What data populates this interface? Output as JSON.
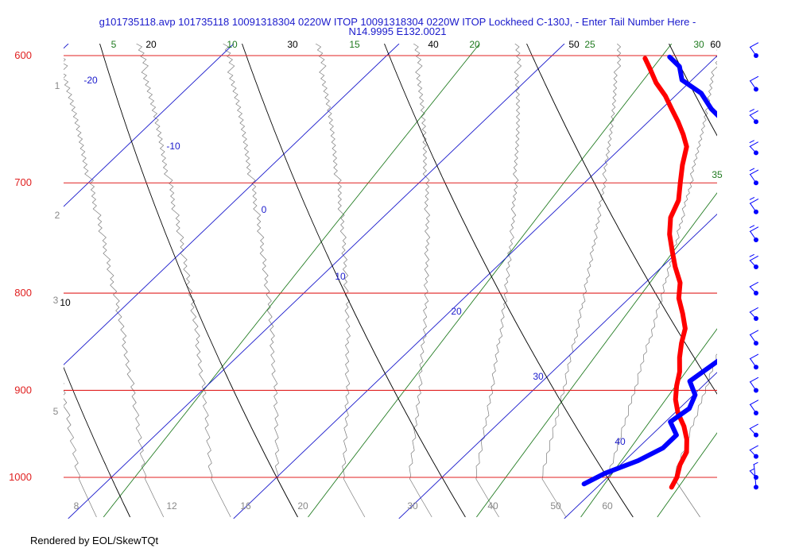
{
  "title_line1": "g101735118.avp 101735118 10091318304 0220W ITOP 10091318304 0220W ITOP Lockheed C-130J, - Enter Tail Number Here -",
  "title_line2": "N14.9995 E132.0021",
  "footer": "Rendered by EOL/SkewTQt",
  "colors": {
    "isobar": "#e02020",
    "isotherm": "#1a1acc",
    "dry_adiabat": "#000000",
    "moist_adiabat": "#7a7a7a",
    "mixing_ratio": "#1f7a1f",
    "temperature": "#ff0000",
    "dewpoint": "#0000ff",
    "wind": "#0000ff"
  },
  "chart_data": {
    "type": "line",
    "chart_kind": "skew-T log-P diagram",
    "pressure_levels": [
      {
        "p": 600,
        "label": "600"
      },
      {
        "p": 700,
        "label": "700"
      },
      {
        "p": 800,
        "label": "800"
      },
      {
        "p": 900,
        "label": "900"
      },
      {
        "p": 1000,
        "label": "1000"
      }
    ],
    "isotherm_labels": [
      "-20",
      "-10",
      "0",
      "10",
      "20",
      "30",
      "40"
    ],
    "dry_adiabat_labels": [
      "10",
      "20",
      "30",
      "40",
      "50",
      "60"
    ],
    "mixing_ratio_labels": [
      "5",
      "10",
      "15",
      "20",
      "25",
      "30",
      "35"
    ],
    "theta_e_labels": [
      "8",
      "12",
      "16",
      "20",
      "30",
      "40",
      "50",
      "60"
    ],
    "height_labels": [
      "1",
      "2",
      "3",
      "4",
      "5"
    ],
    "series": [
      {
        "name": "temperature",
        "points": [
          {
            "p": 1012,
            "t": 24.5
          },
          {
            "p": 1000,
            "t": 24.2
          },
          {
            "p": 985,
            "t": 23.6
          },
          {
            "p": 970,
            "t": 23.2
          },
          {
            "p": 955,
            "t": 22.4
          },
          {
            "p": 940,
            "t": 21.4
          },
          {
            "p": 925,
            "t": 20.2
          },
          {
            "p": 910,
            "t": 19.2
          },
          {
            "p": 895,
            "t": 18.4
          },
          {
            "p": 880,
            "t": 17.7
          },
          {
            "p": 865,
            "t": 16.8
          },
          {
            "p": 850,
            "t": 16.0
          },
          {
            "p": 835,
            "t": 15.3
          },
          {
            "p": 820,
            "t": 14.2
          },
          {
            "p": 805,
            "t": 13.0
          },
          {
            "p": 790,
            "t": 12.1
          },
          {
            "p": 775,
            "t": 10.8
          },
          {
            "p": 760,
            "t": 9.6
          },
          {
            "p": 745,
            "t": 8.4
          },
          {
            "p": 730,
            "t": 7.4
          },
          {
            "p": 715,
            "t": 6.8
          },
          {
            "p": 700,
            "t": 5.8
          },
          {
            "p": 685,
            "t": 4.8
          },
          {
            "p": 670,
            "t": 3.9
          },
          {
            "p": 660,
            "t": 2.9
          },
          {
            "p": 650,
            "t": 1.8
          },
          {
            "p": 640,
            "t": 0.6
          },
          {
            "p": 630,
            "t": -0.6
          },
          {
            "p": 620,
            "t": -2.0
          },
          {
            "p": 610,
            "t": -3.2
          },
          {
            "p": 602,
            "t": -4.2
          }
        ]
      },
      {
        "name": "dewpoint",
        "points": [
          {
            "p": 1008,
            "t": 19.0
          },
          {
            "p": 995,
            "t": 19.6
          },
          {
            "p": 980,
            "t": 20.8
          },
          {
            "p": 965,
            "t": 21.5
          },
          {
            "p": 950,
            "t": 21.5
          },
          {
            "p": 935,
            "t": 20.3
          },
          {
            "p": 920,
            "t": 20.6
          },
          {
            "p": 905,
            "t": 20.1
          },
          {
            "p": 890,
            "t": 18.9
          },
          {
            "p": 875,
            "t": 19.2
          },
          {
            "p": 860,
            "t": 19.5
          },
          {
            "p": 845,
            "t": 19.6
          },
          {
            "p": 830,
            "t": 18.9
          },
          {
            "p": 815,
            "t": 18.3
          },
          {
            "p": 800,
            "t": 17.5
          },
          {
            "p": 785,
            "t": 16.1
          },
          {
            "p": 770,
            "t": 15.3
          },
          {
            "p": 755,
            "t": 14.7
          },
          {
            "p": 740,
            "t": 14.6
          },
          {
            "p": 725,
            "t": 12.5
          },
          {
            "p": 712,
            "t": 10.0
          },
          {
            "p": 700,
            "t": 9.0
          },
          {
            "p": 690,
            "t": 8.0
          },
          {
            "p": 678,
            "t": 7.4
          },
          {
            "p": 665,
            "t": 6.2
          },
          {
            "p": 652,
            "t": 4.9
          },
          {
            "p": 640,
            "t": 3.0
          },
          {
            "p": 628,
            "t": 1.4
          },
          {
            "p": 618,
            "t": -0.6
          },
          {
            "p": 608,
            "t": -1.6
          },
          {
            "p": 601,
            "t": -2.8
          }
        ]
      }
    ],
    "wind_barbs": [
      {
        "p": 600,
        "speed_kt": 10,
        "dir_deg": 250
      },
      {
        "p": 625,
        "speed_kt": 10,
        "dir_deg": 250
      },
      {
        "p": 650,
        "speed_kt": 15,
        "dir_deg": 255
      },
      {
        "p": 675,
        "speed_kt": 15,
        "dir_deg": 255
      },
      {
        "p": 700,
        "speed_kt": 15,
        "dir_deg": 250
      },
      {
        "p": 725,
        "speed_kt": 15,
        "dir_deg": 250
      },
      {
        "p": 750,
        "speed_kt": 15,
        "dir_deg": 250
      },
      {
        "p": 775,
        "speed_kt": 15,
        "dir_deg": 255
      },
      {
        "p": 800,
        "speed_kt": 10,
        "dir_deg": 255
      },
      {
        "p": 825,
        "speed_kt": 10,
        "dir_deg": 255
      },
      {
        "p": 850,
        "speed_kt": 10,
        "dir_deg": 250
      },
      {
        "p": 875,
        "speed_kt": 10,
        "dir_deg": 250
      },
      {
        "p": 900,
        "speed_kt": 10,
        "dir_deg": 250
      },
      {
        "p": 925,
        "speed_kt": 10,
        "dir_deg": 250
      },
      {
        "p": 950,
        "speed_kt": 10,
        "dir_deg": 255
      },
      {
        "p": 975,
        "speed_kt": 10,
        "dir_deg": 255
      },
      {
        "p": 1000,
        "speed_kt": 5,
        "dir_deg": 255
      },
      {
        "p": 1012,
        "speed_kt": 5,
        "dir_deg": 200
      }
    ]
  }
}
